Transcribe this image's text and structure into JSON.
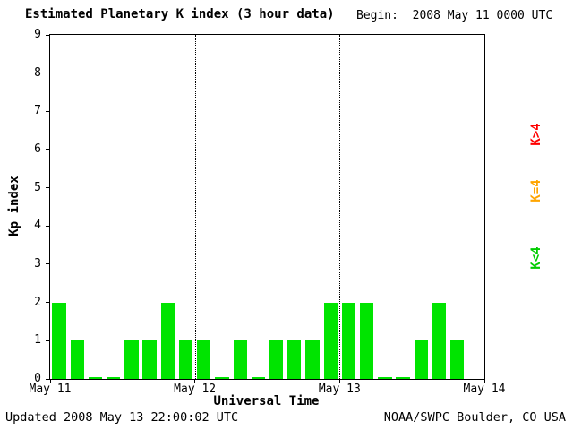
{
  "chart_data": {
    "type": "bar",
    "title": "Estimated Planetary K index (3 hour data)",
    "begin_label": "Begin:  2008 May 11 0000 UTC",
    "xlabel": "Universal Time",
    "ylabel": "Kp index",
    "ylim": [
      0,
      9
    ],
    "yticks": [
      0,
      1,
      2,
      3,
      4,
      5,
      6,
      7,
      8,
      9
    ],
    "xticks": [
      "May 11",
      "May 12",
      "May 13",
      "May 14"
    ],
    "interval_hours": 3,
    "values": [
      2,
      1,
      0,
      0,
      1,
      1,
      2,
      1,
      1,
      0,
      1,
      0,
      1,
      1,
      1,
      2,
      2,
      2,
      0,
      0,
      1,
      2,
      1,
      null
    ],
    "bar_color": "#00e400",
    "grid": "vertical dotted lines at day boundaries",
    "legend_position": "right",
    "legend": [
      {
        "label": "K>4",
        "color": "#ff0000"
      },
      {
        "label": "K=4",
        "color": "#ffa500"
      },
      {
        "label": "K<4",
        "color": "#00cc00"
      }
    ]
  },
  "footer": {
    "updated": "Updated 2008 May 13 22:00:02 UTC",
    "credit": "NOAA/SWPC Boulder, CO USA"
  }
}
